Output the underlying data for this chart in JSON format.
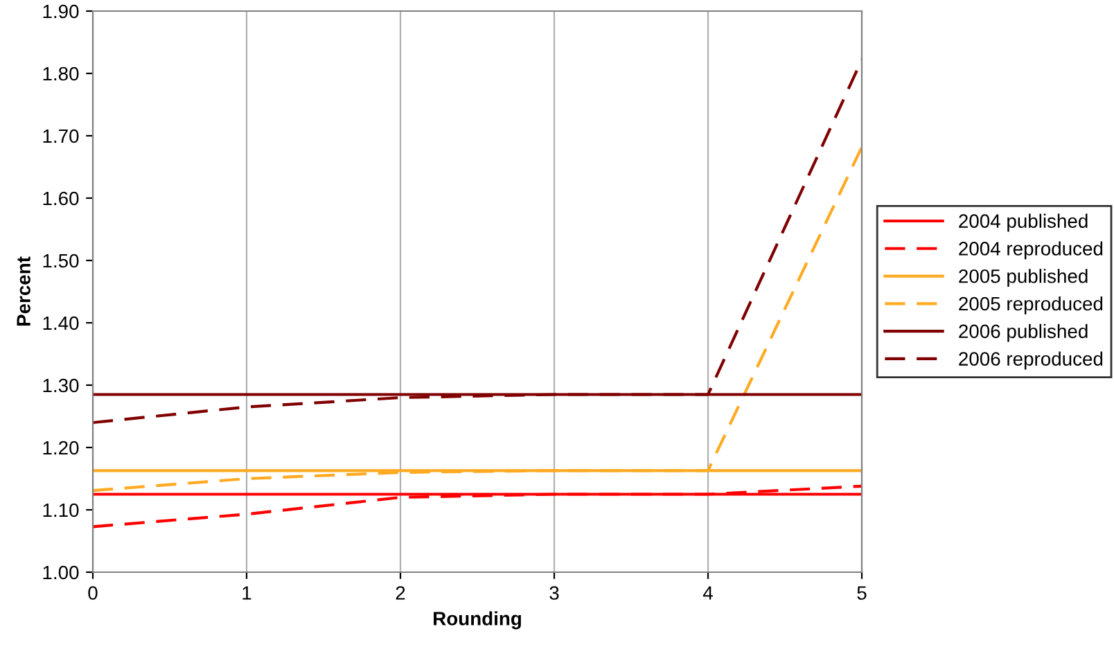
{
  "chart_data": {
    "type": "line",
    "xlabel": "Rounding",
    "ylabel": "Percent",
    "x": [
      0,
      1,
      2,
      3,
      4,
      5
    ],
    "xlim": [
      0,
      5
    ],
    "xticks": [
      0,
      1,
      2,
      3,
      4,
      5
    ],
    "ylim": [
      1.0,
      1.9
    ],
    "yticks": [
      {
        "value": 1.0,
        "label": "1.00"
      },
      {
        "value": 1.1,
        "label": "1.10"
      },
      {
        "value": 1.2,
        "label": "1.20"
      },
      {
        "value": 1.3,
        "label": "1.30"
      },
      {
        "value": 1.4,
        "label": "1.40"
      },
      {
        "value": 1.5,
        "label": "1.50"
      },
      {
        "value": 1.6,
        "label": "1.60"
      },
      {
        "value": 1.7,
        "label": "1.70"
      },
      {
        "value": 1.8,
        "label": "1.80"
      },
      {
        "value": 1.9,
        "label": "1.90"
      }
    ],
    "grid": "x",
    "legend": "right",
    "marker": "none",
    "series": [
      {
        "name": "2004 published",
        "color": "#ff0000",
        "line_style": "solid",
        "values": [
          1.125,
          1.125,
          1.125,
          1.125,
          1.125,
          1.125
        ]
      },
      {
        "name": "2004 reproduced",
        "color": "#ff0000",
        "line_style": "dashed",
        "values": [
          1.073,
          1.093,
          1.12,
          1.125,
          1.125,
          1.138
        ]
      },
      {
        "name": "2005 published",
        "color": "#ffaa22",
        "line_style": "solid",
        "values": [
          1.163,
          1.163,
          1.163,
          1.163,
          1.163,
          1.163
        ]
      },
      {
        "name": "2005 reproduced",
        "color": "#ffaa22",
        "line_style": "dashed",
        "values": [
          1.131,
          1.15,
          1.16,
          1.163,
          1.163,
          1.682
        ]
      },
      {
        "name": "2006 published",
        "color": "#800000",
        "line_style": "solid",
        "values": [
          1.285,
          1.285,
          1.285,
          1.285,
          1.285,
          1.285
        ]
      },
      {
        "name": "2006 reproduced",
        "color": "#800000",
        "line_style": "dashed",
        "values": [
          1.24,
          1.265,
          1.28,
          1.285,
          1.285,
          1.822
        ]
      }
    ]
  }
}
